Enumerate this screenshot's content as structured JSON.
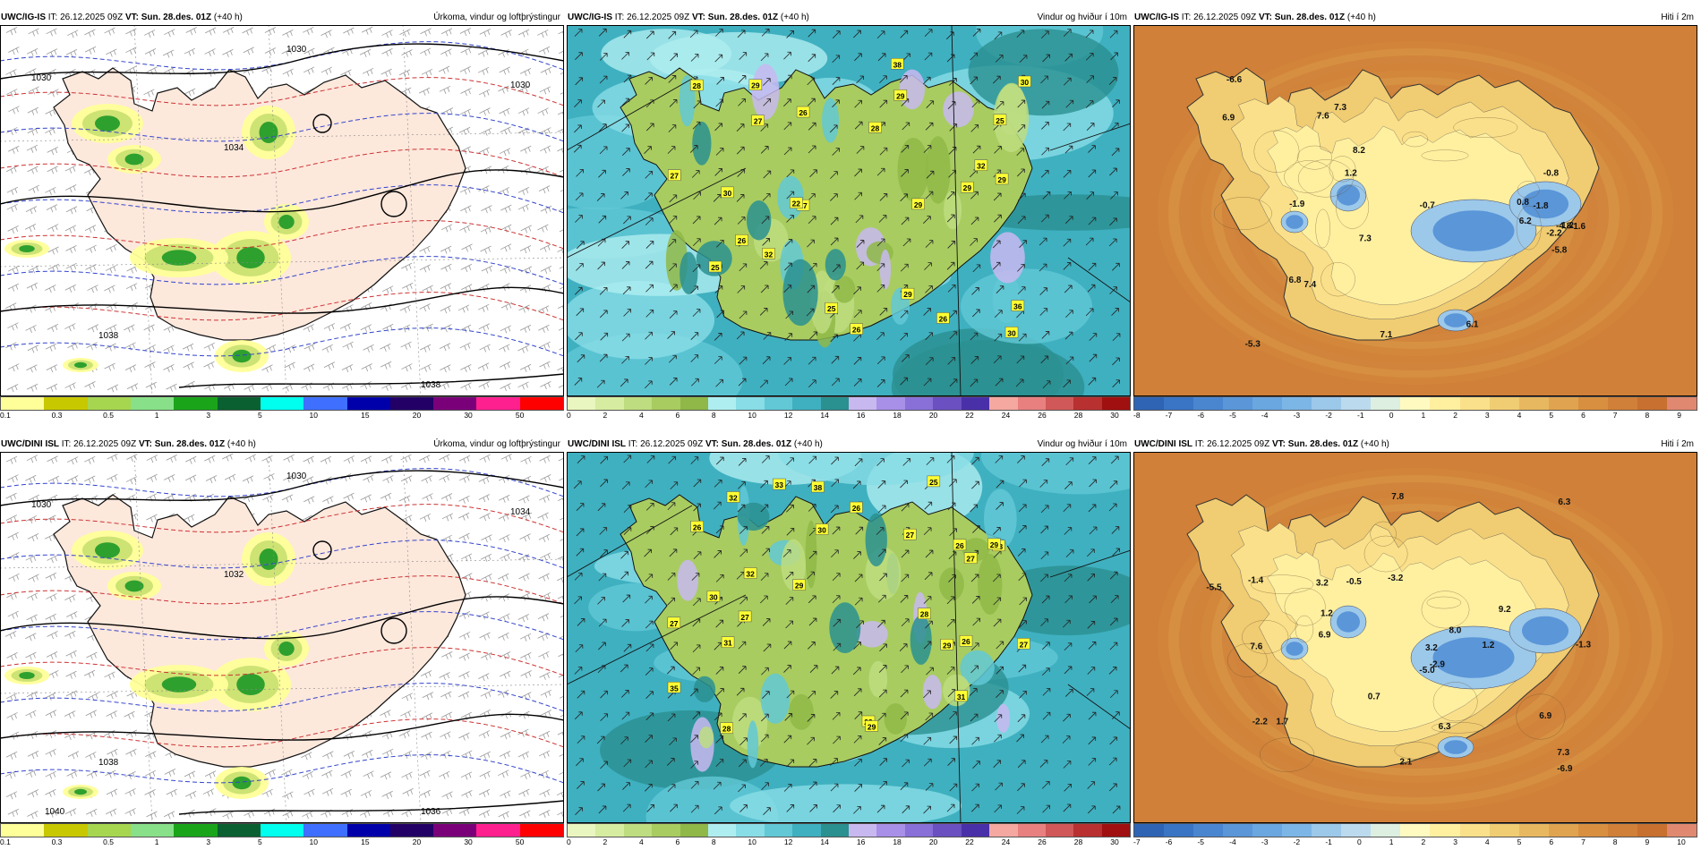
{
  "panels": [
    {
      "id": "p1",
      "model": "UWC/IG-IS",
      "it": "IT: 26.12.2025 09Z",
      "vt_label": "VT:",
      "vt": "Sun. 28.des. 01Z",
      "lead": "(+40 h)",
      "field": "Úrkoma, vindur og loftþrýstingur",
      "type": "precip",
      "colorbar": {
        "colors": [
          "#ffff99",
          "#c8c800",
          "#a6d64f",
          "#88e088",
          "#1aa41a",
          "#0a6030",
          "#00ffee",
          "#3f6fff",
          "#0000aa",
          "#220066",
          "#7a007a",
          "#ff2090",
          "#ff0000"
        ],
        "ticks": [
          "0.1",
          "0.3",
          "0.5",
          "1",
          "3",
          "5",
          "10",
          "15",
          "20",
          "30",
          "50"
        ]
      },
      "isobars": [
        "1030",
        "1030",
        "1034",
        "1030",
        "1038",
        "1038"
      ]
    },
    {
      "id": "p2",
      "model": "UWC/IG-IS",
      "it": "IT: 26.12.2025 09Z",
      "vt_label": "VT:",
      "vt": "Sun. 28.des. 01Z",
      "lead": "(+40 h)",
      "field": "Vindur og hviður í 10m",
      "type": "wind",
      "colorbar": {
        "colors": [
          "#eaf6c0",
          "#d6eca0",
          "#bedd80",
          "#a8cc60",
          "#8fb848",
          "#afeef0",
          "#88dde6",
          "#62c8d6",
          "#3fb0c0",
          "#2a9090",
          "#c8b8f0",
          "#a890e8",
          "#8870d8",
          "#6a50c0",
          "#4a30a8",
          "#f4a8a0",
          "#e88080",
          "#d05858",
          "#b83030",
          "#a01010"
        ],
        "ticks": [
          "0",
          "2",
          "4",
          "6",
          "8",
          "10",
          "12",
          "14",
          "16",
          "18",
          "20",
          "22",
          "24",
          "26",
          "28",
          "30"
        ]
      },
      "labels": [
        "26",
        "27",
        "29",
        "25",
        "26",
        "22",
        "30",
        "27",
        "28",
        "30",
        "29",
        "26",
        "30",
        "29",
        "38",
        "29",
        "32",
        "25",
        "26",
        "29",
        "28",
        "36",
        "32",
        "29",
        "27",
        "25"
      ]
    },
    {
      "id": "p3",
      "model": "UWC/IG-IS",
      "it": "IT: 26.12.2025 09Z",
      "vt_label": "VT:",
      "vt": "Sun. 28.des. 01Z",
      "lead": "(+40 h)",
      "field": "Hiti í 2m",
      "type": "temp",
      "colorbar": {
        "colors": [
          "#2f64b4",
          "#3a74c4",
          "#4a86d0",
          "#5a96d8",
          "#6aa6e0",
          "#7cb6e6",
          "#9cc8ea",
          "#bcdaee",
          "#ddefe0",
          "#fffac0",
          "#fff0a0",
          "#fae08a",
          "#f0cc72",
          "#e8b860",
          "#e0a450",
          "#d89040",
          "#d08038",
          "#c87030",
          "#e08870"
        ],
        "ticks": [
          "-8",
          "-7",
          "-6",
          "-5",
          "-4",
          "-3",
          "-2",
          "-1",
          "0",
          "1",
          "2",
          "3",
          "4",
          "5",
          "6",
          "7",
          "8",
          "9"
        ]
      },
      "labels": [
        "7.3",
        "6.2",
        "8.2",
        "7.3",
        "6.9",
        "1.2",
        "7.1",
        "0.8",
        "1.2",
        "-1.8",
        "7.4",
        "7.6",
        "-2.2",
        "-0.8",
        "-1.6",
        "-4.8",
        "-5.8",
        "-6.6",
        "6.8",
        "6.1",
        "-5.3",
        "-1.9",
        "-0.7"
      ]
    },
    {
      "id": "p4",
      "model": "UWC/DINI ISL",
      "it": "IT: 26.12.2025 09Z",
      "vt_label": "VT:",
      "vt": "Sun. 28.des. 01Z",
      "lead": "(+40 h)",
      "field": "Úrkoma, vindur og loftþrýstingur",
      "type": "precip",
      "colorbar": {
        "colors": [
          "#ffff99",
          "#c8c800",
          "#a6d64f",
          "#88e088",
          "#1aa41a",
          "#0a6030",
          "#00ffee",
          "#3f6fff",
          "#0000aa",
          "#220066",
          "#7a007a",
          "#ff2090",
          "#ff0000"
        ],
        "ticks": [
          "0.1",
          "0.3",
          "0.5",
          "1",
          "3",
          "5",
          "10",
          "15",
          "20",
          "30",
          "50"
        ]
      },
      "isobars": [
        "1030",
        "1030",
        "1032",
        "1034",
        "1038",
        "1036",
        "1040"
      ]
    },
    {
      "id": "p5",
      "model": "UWC/DINI ISL",
      "it": "IT: 26.12.2025 09Z",
      "vt_label": "VT:",
      "vt": "Sun. 28.des. 01Z",
      "lead": "(+40 h)",
      "field": "Vindur og hviður í 10m",
      "type": "wind",
      "colorbar": {
        "colors": [
          "#eaf6c0",
          "#d6eca0",
          "#bedd80",
          "#a8cc60",
          "#8fb848",
          "#afeef0",
          "#88dde6",
          "#62c8d6",
          "#3fb0c0",
          "#2a9090",
          "#c8b8f0",
          "#a890e8",
          "#8870d8",
          "#6a50c0",
          "#4a30a8",
          "#f4a8a0",
          "#e88080",
          "#d05858",
          "#b83030",
          "#a01010"
        ],
        "ticks": [
          "0",
          "2",
          "4",
          "6",
          "8",
          "10",
          "12",
          "14",
          "16",
          "18",
          "20",
          "22",
          "24",
          "26",
          "28",
          "30"
        ]
      },
      "labels": [
        "28",
        "29",
        "32",
        "26",
        "26",
        "27",
        "32",
        "26",
        "27",
        "29",
        "29",
        "25",
        "26",
        "28",
        "27",
        "31",
        "27",
        "29",
        "30",
        "29",
        "28",
        "33",
        "31",
        "38",
        "35",
        "27",
        "30"
      ]
    },
    {
      "id": "p6",
      "model": "UWC/DINI ISL",
      "it": "IT: 26.12.2025 09Z",
      "vt_label": "VT:",
      "vt": "Sun. 28.des. 01Z",
      "lead": "(+40 h)",
      "field": "Hiti í 2m",
      "type": "temp",
      "colorbar": {
        "colors": [
          "#2f64b4",
          "#3a74c4",
          "#4a86d0",
          "#5a96d8",
          "#6aa6e0",
          "#7cb6e6",
          "#9cc8ea",
          "#bcdaee",
          "#ddefe0",
          "#fffac0",
          "#fff0a0",
          "#fae08a",
          "#f0cc72",
          "#e8b860",
          "#e0a450",
          "#d89040",
          "#d08038",
          "#c87030",
          "#e08870"
        ],
        "ticks": [
          "-7",
          "-6",
          "-5",
          "-4",
          "-3",
          "-2",
          "-1",
          "0",
          "1",
          "2",
          "3",
          "4",
          "5",
          "6",
          "7",
          "8",
          "9",
          "10"
        ]
      },
      "labels": [
        "6.3",
        "1.2",
        "7.6",
        "1.7",
        "8.0",
        "6.3",
        "6.9",
        "1.2",
        "-1.3",
        "-1.4",
        "7.3",
        "7.8",
        "0.7",
        "2.1",
        "-2.9",
        "-5.5",
        "-6.9",
        "-5.0",
        "6.9",
        "-0.5",
        "9.2",
        "3.2",
        "3.2",
        "-3.2",
        "-2.2"
      ]
    }
  ]
}
